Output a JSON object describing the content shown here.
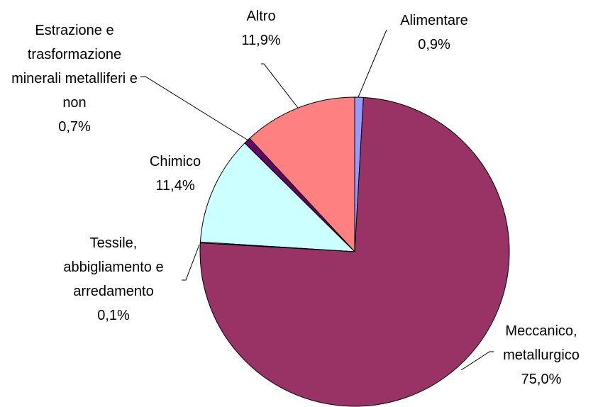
{
  "chart_data": {
    "type": "pie",
    "categories": [
      "Alimentare",
      "Meccanico, metallurgico",
      "Tessile, abbigliamento e arredamento",
      "Chimico",
      "Estrazione e trasformazione minerali metalliferi e non",
      "Altro"
    ],
    "values": [
      0.9,
      75.0,
      0.1,
      11.4,
      0.7,
      11.9
    ],
    "value_labels": [
      "0,9%",
      "75,0%",
      "0,1%",
      "11,4%",
      "0,7%",
      "11,9%"
    ],
    "colors": [
      "#9999ff",
      "#993366",
      "#ffffcc",
      "#ccffff",
      "#660066",
      "#ff8080"
    ]
  }
}
